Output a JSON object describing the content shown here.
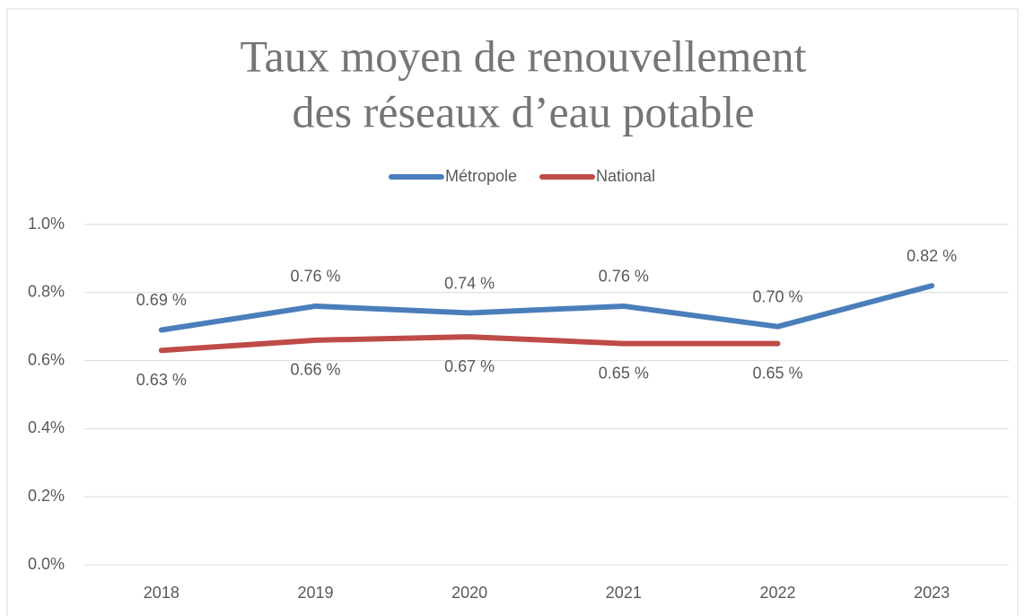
{
  "chart_data": {
    "type": "line",
    "title": [
      "Taux moyen de renouvellement",
      "des réseaux d’eau potable"
    ],
    "categories": [
      "2018",
      "2019",
      "2020",
      "2021",
      "2022",
      "2023"
    ],
    "series": [
      {
        "name": "Métropole",
        "color": "#4a7ebb",
        "label_position": "above",
        "values": [
          0.69,
          0.76,
          0.74,
          0.76,
          0.7,
          0.82
        ],
        "value_labels": [
          "0.69 %",
          "0.76 %",
          "0.74 %",
          "0.76 %",
          "0.70 %",
          "0.82 %"
        ]
      },
      {
        "name": "National",
        "color": "#be4b48",
        "label_position": "below",
        "values": [
          0.63,
          0.66,
          0.67,
          0.65,
          0.65,
          null
        ],
        "value_labels": [
          "0.63 %",
          "0.66 %",
          "0.67 %",
          "0.65 %",
          "0.65 %",
          null
        ]
      }
    ],
    "ylim": [
      0,
      1.0
    ],
    "yticks": [
      {
        "value": 0,
        "label": "0.0%"
      },
      {
        "value": 0.2,
        "label": "0.2%"
      },
      {
        "value": 0.4,
        "label": "0.4%"
      },
      {
        "value": 0.6,
        "label": "0.6%"
      },
      {
        "value": 0.8,
        "label": "0.8%"
      },
      {
        "value": 1.0,
        "label": "1.0%"
      }
    ],
    "grid": true,
    "legend": "top"
  }
}
